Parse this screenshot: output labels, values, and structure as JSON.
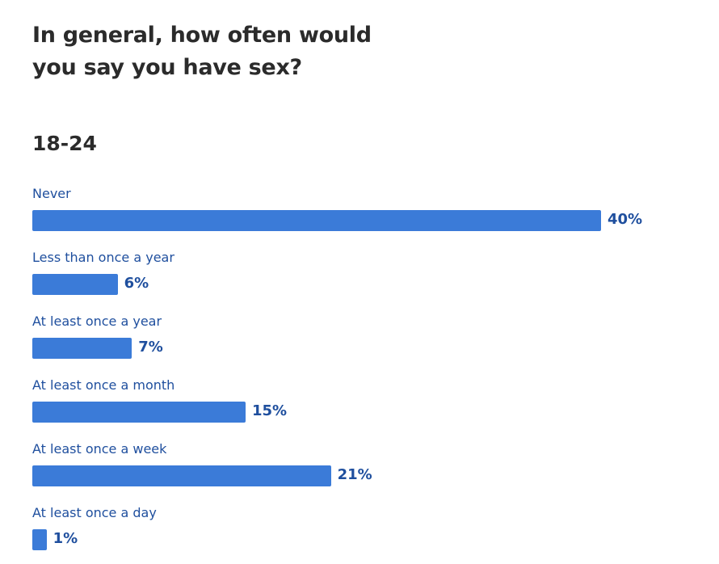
{
  "chart_data": {
    "type": "bar",
    "orientation": "horizontal",
    "title": "In general, how often would you say you have sex?",
    "subtitle": "18-24",
    "categories": [
      "Never",
      "Less than once a year",
      "At least once a year",
      "At least once a month",
      "At least once a week",
      "At least once a day"
    ],
    "values": [
      40,
      6,
      7,
      15,
      21,
      1
    ],
    "value_labels": [
      "40%",
      "6%",
      "7%",
      "15%",
      "21%",
      "1%"
    ],
    "unit": "%",
    "xlim": [
      0,
      40
    ],
    "grid": false,
    "colors": {
      "bar": "#3b7bd8",
      "label": "#1f4f9e",
      "title": "#2b2b2b"
    }
  }
}
